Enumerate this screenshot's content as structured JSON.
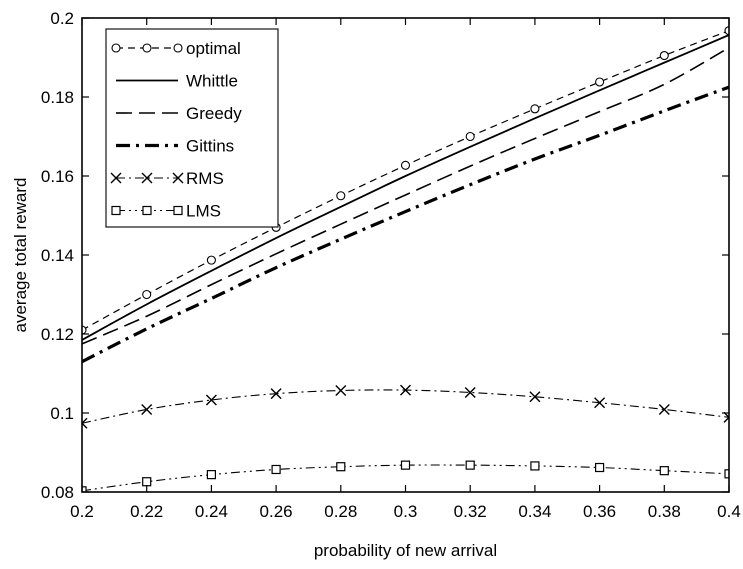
{
  "chart_data": {
    "type": "line",
    "xlabel": "probability of new arrival",
    "ylabel": "average total reward",
    "xlim": [
      0.2,
      0.4
    ],
    "ylim": [
      0.08,
      0.2
    ],
    "xticks": [
      0.2,
      0.22,
      0.24,
      0.26,
      0.28,
      0.3,
      0.32,
      0.34,
      0.36,
      0.38,
      0.4
    ],
    "yticks": [
      0.08,
      0.1,
      0.12,
      0.14,
      0.16,
      0.18,
      0.2
    ],
    "xtick_labels": [
      "0.2",
      "0.22",
      "0.24",
      "0.26",
      "0.28",
      "0.3",
      "0.32",
      "0.34",
      "0.36",
      "0.38",
      "0.4"
    ],
    "ytick_labels": [
      "0.08",
      "0.1",
      "0.12",
      "0.14",
      "0.16",
      "0.18",
      "0.2"
    ],
    "grid": false,
    "legend_position": "top-left",
    "x": [
      0.2,
      0.22,
      0.24,
      0.26,
      0.28,
      0.3,
      0.32,
      0.34,
      0.36,
      0.38,
      0.4
    ],
    "series": [
      {
        "name": "optimal",
        "style": "dash-circle",
        "values": [
          0.121,
          0.13,
          0.1387,
          0.147,
          0.155,
          0.1627,
          0.17,
          0.177,
          0.1838,
          0.1905,
          0.1968
        ]
      },
      {
        "name": "Whittle",
        "style": "solid",
        "values": [
          0.1185,
          0.1275,
          0.136,
          0.1443,
          0.1522,
          0.16,
          0.1674,
          0.1746,
          0.1817,
          0.1887,
          0.1957
        ]
      },
      {
        "name": "Greedy",
        "style": "long-dash",
        "values": [
          0.1175,
          0.1245,
          0.1325,
          0.1403,
          0.1478,
          0.1552,
          0.1625,
          0.1695,
          0.1763,
          0.1832,
          0.1925
        ]
      },
      {
        "name": "Gittins",
        "style": "thick-dash-dot",
        "values": [
          0.113,
          0.1213,
          0.129,
          0.1368,
          0.144,
          0.151,
          0.1578,
          0.1643,
          0.1703,
          0.1765,
          0.1825
        ]
      },
      {
        "name": "RMS",
        "style": "dash-dot-x",
        "values": [
          0.0974,
          0.1009,
          0.1033,
          0.1049,
          0.1057,
          0.1058,
          0.1052,
          0.1041,
          0.1026,
          0.1009,
          0.0989
        ]
      },
      {
        "name": "LMS",
        "style": "dash-dot-dot-square",
        "values": [
          0.0803,
          0.0826,
          0.0844,
          0.0857,
          0.0864,
          0.0868,
          0.0868,
          0.0866,
          0.0862,
          0.0854,
          0.0846
        ]
      }
    ]
  }
}
